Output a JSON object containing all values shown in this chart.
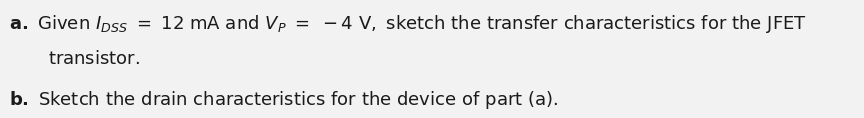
{
  "line1_a": "a.",
  "line1_given": " Given ",
  "line1_idss": "I",
  "line1_idss_sub": "DSS",
  "line1_mid": " = 12 mA and ",
  "line1_vp": "V",
  "line1_vp_sub": "P",
  "line1_rest": " = −4 V, sketch the transfer characteristics for the JFET",
  "line2_indent": "    transistor.",
  "line3_b": "b.",
  "line3_rest": " Sketch the drain characteristics for the device of part (a).",
  "font_size": 13.0,
  "text_color": "#1a1a1a",
  "background_color": "#f2f2f2",
  "fig_width": 8.64,
  "fig_height": 1.18,
  "dpi": 100
}
